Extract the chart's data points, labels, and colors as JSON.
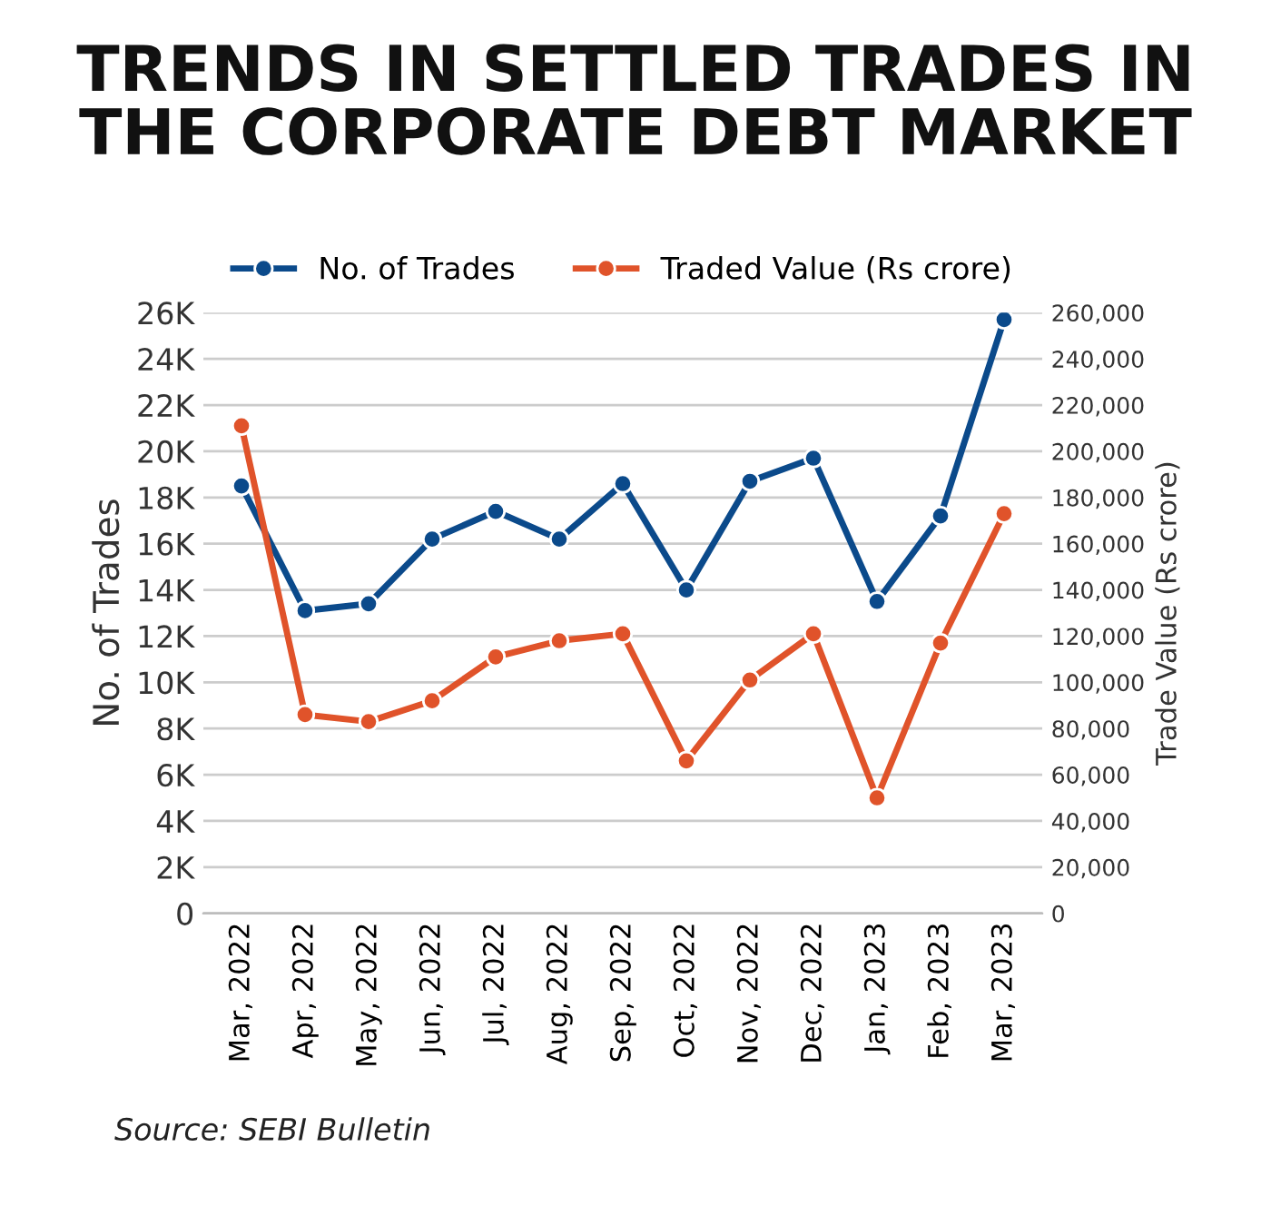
{
  "chart_data": {
    "type": "line",
    "title": "TRENDS IN SETTLED TRADES IN\nTHE CORPORATE DEBT MARKET",
    "ylabel": "No. of Trades",
    "y2label": "Trade Value (Rs crore)",
    "categories": [
      "Mar, 2022",
      "Apr, 2022",
      "May, 2022",
      "Jun, 2022",
      "Jul, 2022",
      "Aug, 2022",
      "Sep, 2022",
      "Oct, 2022",
      "Nov, 2022",
      "Dec, 2022",
      "Jan, 2023",
      "Feb, 2023",
      "Mar, 2023"
    ],
    "series": [
      {
        "name": "No. of Trades",
        "color": "#0b4a8b",
        "values": [
          18500,
          13100,
          13400,
          16200,
          17400,
          16200,
          18600,
          14000,
          18700,
          19700,
          13500,
          17200,
          25700
        ]
      },
      {
        "name": "Traded Value (Rs crore)",
        "color": "#e0532a",
        "axis": "y2",
        "values": [
          211000,
          86000,
          83000,
          92000,
          111000,
          118000,
          121000,
          66000,
          101000,
          121000,
          50000,
          117000,
          173000
        ]
      }
    ],
    "ylim": [
      0,
      26000
    ],
    "yticks": [
      0,
      {
        "value": 2000,
        "label": "2K"
      },
      {
        "value": 4000,
        "label": "4K"
      },
      {
        "value": 6000,
        "label": "6K"
      },
      {
        "value": 8000,
        "label": "8K"
      },
      {
        "value": 10000,
        "label": "10K"
      },
      {
        "value": 12000,
        "label": "12K"
      },
      {
        "value": 14000,
        "label": "14K"
      },
      {
        "value": 16000,
        "label": "16K"
      },
      {
        "value": 18000,
        "label": "18K"
      },
      {
        "value": 20000,
        "label": "20K"
      },
      {
        "value": 22000,
        "label": "22K"
      },
      {
        "value": 24000,
        "label": "24K"
      },
      {
        "value": 26000,
        "label": "26K"
      }
    ],
    "y2lim": [
      0,
      260000
    ],
    "y2ticks": [
      0,
      {
        "value": 20000,
        "label": "20,000"
      },
      {
        "value": 40000,
        "label": "40,000"
      },
      {
        "value": 60000,
        "label": "60,000"
      },
      {
        "value": 80000,
        "label": "80,000"
      },
      {
        "value": 100000,
        "label": "100,000"
      },
      {
        "value": 120000,
        "label": "120,000"
      },
      {
        "value": 140000,
        "label": "140,000"
      },
      {
        "value": 160000,
        "label": "160,000"
      },
      {
        "value": 180000,
        "label": "180,000"
      },
      {
        "value": 200000,
        "label": "200,000"
      },
      {
        "value": 220000,
        "label": "220,000"
      },
      {
        "value": 240000,
        "label": "240,000"
      },
      {
        "value": 260000,
        "label": "260,000"
      }
    ],
    "grid": "y",
    "legend": "top",
    "marker": "circle",
    "line_style": "solid",
    "annotations": [
      "Source: SEBI Bulletin"
    ]
  }
}
